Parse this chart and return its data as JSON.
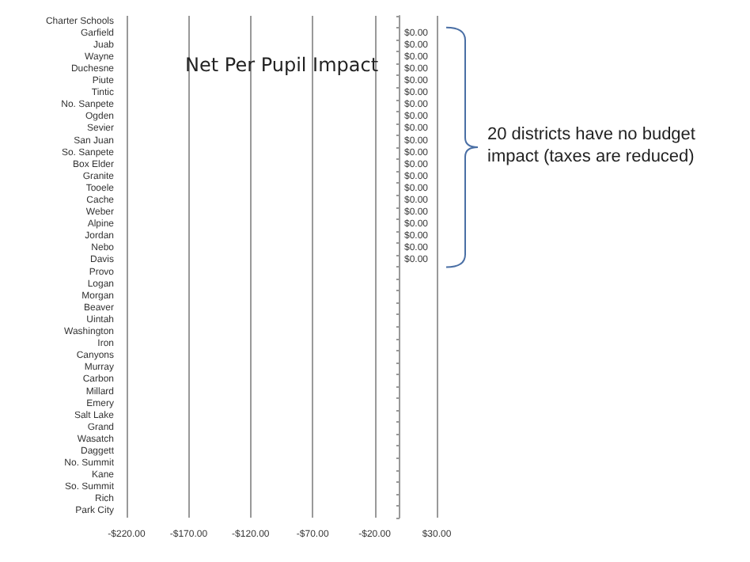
{
  "chart_data": {
    "type": "bar",
    "orientation": "horizontal",
    "title": "Net Per Pupil Impact",
    "categories": [
      "Charter Schools",
      "Garfield",
      "Juab",
      "Wayne",
      "Duchesne",
      "Piute",
      "Tintic",
      "No. Sanpete",
      "Ogden",
      "Sevier",
      "San Juan",
      "So. Sanpete",
      "Box Elder",
      "Granite",
      "Tooele",
      "Cache",
      "Weber",
      "Alpine",
      "Jordan",
      "Nebo",
      "Davis",
      "Provo",
      "Logan",
      "Morgan",
      "Beaver",
      "Uintah",
      "Washington",
      "Iron",
      "Canyons",
      "Murray",
      "Carbon",
      "Millard",
      "Emery",
      "Salt Lake",
      "Grand",
      "Wasatch",
      "Daggett",
      "No. Summit",
      "Kane",
      "So. Summit",
      "Rich",
      "Park City"
    ],
    "values": [
      null,
      0,
      0,
      0,
      0,
      0,
      0,
      0,
      0,
      0,
      0,
      0,
      0,
      0,
      0,
      0,
      0,
      0,
      0,
      0,
      0,
      null,
      null,
      null,
      null,
      null,
      null,
      null,
      null,
      null,
      null,
      null,
      null,
      null,
      null,
      null,
      null,
      null,
      null,
      null,
      null,
      null
    ],
    "value_labels": [
      null,
      "$0.00",
      "$0.00",
      "$0.00",
      "$0.00",
      "$0.00",
      "$0.00",
      "$0.00",
      "$0.00",
      "$0.00",
      "$0.00",
      "$0.00",
      "$0.00",
      "$0.00",
      "$0.00",
      "$0.00",
      "$0.00",
      "$0.00",
      "$0.00",
      "$0.00",
      "$0.00",
      null,
      null,
      null,
      null,
      null,
      null,
      null,
      null,
      null,
      null,
      null,
      null,
      null,
      null,
      null,
      null,
      null,
      null,
      null,
      null,
      null
    ],
    "xlim": [
      -220,
      30
    ],
    "xticks": [
      {
        "value": -220,
        "label": "-$220.00"
      },
      {
        "value": -170,
        "label": "-$170.00"
      },
      {
        "value": -120,
        "label": "-$120.00"
      },
      {
        "value": -70,
        "label": "-$70.00"
      },
      {
        "value": -20,
        "label": "-$20.00"
      },
      {
        "value": 30,
        "label": "$30.00"
      }
    ],
    "grid": "x",
    "annotations": [
      "20 districts have no budget impact (taxes are reduced)"
    ]
  }
}
